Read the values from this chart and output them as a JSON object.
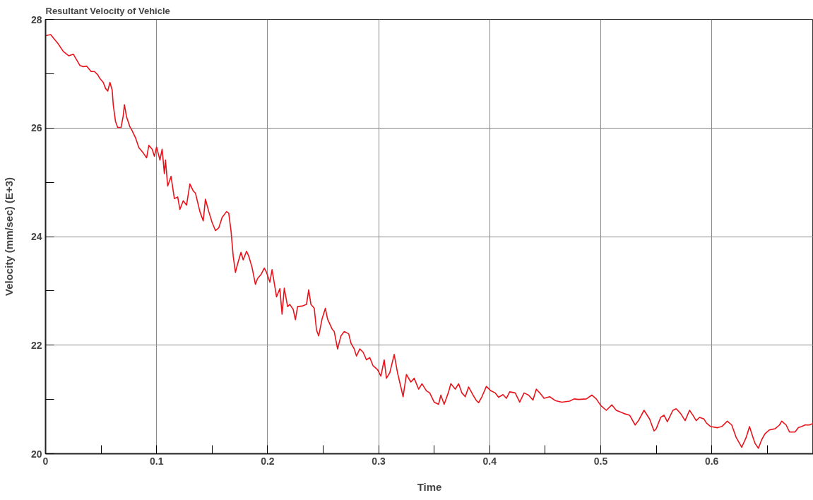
{
  "chart_data": {
    "type": "line",
    "title": "Resultant Velocity of Vehicle",
    "xlabel": "Time",
    "ylabel": "Velocity (mm/sec) (E+3)",
    "x": [
      0,
      0.0046,
      0.0078,
      0.011,
      0.016,
      0.021,
      0.025,
      0.027,
      0.031,
      0.034,
      0.037,
      0.041,
      0.044,
      0.047,
      0.049,
      0.052,
      0.054,
      0.056,
      0.058,
      0.06,
      0.061,
      0.063,
      0.065,
      0.068,
      0.07,
      0.071,
      0.073,
      0.076,
      0.078,
      0.081,
      0.084,
      0.088,
      0.091,
      0.093,
      0.096,
      0.098,
      0.1,
      0.103,
      0.105,
      0.107,
      0.108,
      0.11,
      0.113,
      0.116,
      0.119,
      0.121,
      0.124,
      0.127,
      0.13,
      0.133,
      0.135,
      0.139,
      0.142,
      0.144,
      0.147,
      0.15,
      0.153,
      0.156,
      0.159,
      0.163,
      0.165,
      0.167,
      0.169,
      0.171,
      0.173,
      0.176,
      0.178,
      0.181,
      0.183,
      0.186,
      0.189,
      0.191,
      0.194,
      0.197,
      0.199,
      0.202,
      0.204,
      0.207,
      0.208,
      0.211,
      0.213,
      0.215,
      0.218,
      0.22,
      0.223,
      0.225,
      0.227,
      0.231,
      0.235,
      0.237,
      0.239,
      0.242,
      0.244,
      0.246,
      0.249,
      0.252,
      0.254,
      0.258,
      0.26,
      0.263,
      0.266,
      0.269,
      0.273,
      0.275,
      0.278,
      0.28,
      0.283,
      0.286,
      0.289,
      0.292,
      0.295,
      0.299,
      0.302,
      0.305,
      0.307,
      0.31,
      0.314,
      0.317,
      0.32,
      0.322,
      0.325,
      0.329,
      0.332,
      0.336,
      0.339,
      0.343,
      0.346,
      0.35,
      0.354,
      0.356,
      0.359,
      0.363,
      0.365,
      0.369,
      0.372,
      0.375,
      0.378,
      0.381,
      0.385,
      0.388,
      0.39,
      0.393,
      0.397,
      0.401,
      0.405,
      0.408,
      0.412,
      0.415,
      0.418,
      0.423,
      0.427,
      0.431,
      0.435,
      0.439,
      0.442,
      0.446,
      0.449,
      0.454,
      0.459,
      0.465,
      0.472,
      0.476,
      0.48,
      0.487,
      0.492,
      0.496,
      0.5,
      0.505,
      0.51,
      0.514,
      0.521,
      0.526,
      0.531,
      0.534,
      0.539,
      0.544,
      0.548,
      0.55,
      0.554,
      0.557,
      0.56,
      0.565,
      0.568,
      0.572,
      0.576,
      0.58,
      0.583,
      0.586,
      0.589,
      0.593,
      0.595,
      0.599,
      0.605,
      0.609,
      0.614,
      0.618,
      0.622,
      0.627,
      0.631,
      0.634,
      0.636,
      0.639,
      0.642,
      0.645,
      0.648,
      0.652,
      0.657,
      0.661,
      0.663,
      0.667,
      0.67,
      0.675,
      0.678,
      0.681,
      0.684,
      0.688,
      0.6915
    ],
    "series": [
      {
        "color": "#e8141c",
        "values": [
          27.7,
          27.72,
          27.64,
          27.56,
          27.41,
          27.33,
          27.36,
          27.29,
          27.15,
          27.13,
          27.14,
          27.04,
          27.04,
          26.98,
          26.91,
          26.84,
          26.73,
          26.68,
          26.84,
          26.7,
          26.42,
          26.12,
          26.01,
          26.01,
          26.23,
          26.43,
          26.2,
          26.02,
          25.95,
          25.82,
          25.64,
          25.54,
          25.45,
          25.68,
          25.61,
          25.48,
          25.65,
          25.41,
          25.61,
          25.16,
          25.41,
          24.93,
          25.11,
          24.7,
          24.73,
          24.5,
          24.66,
          24.58,
          24.97,
          24.84,
          24.8,
          24.46,
          24.29,
          24.69,
          24.46,
          24.26,
          24.11,
          24.16,
          24.35,
          24.46,
          24.43,
          24.11,
          23.64,
          23.34,
          23.5,
          23.71,
          23.57,
          23.73,
          23.64,
          23.43,
          23.12,
          23.23,
          23.3,
          23.42,
          23.34,
          23.16,
          23.39,
          23.02,
          22.89,
          23.04,
          22.57,
          23.05,
          22.71,
          22.75,
          22.66,
          22.47,
          22.71,
          22.72,
          22.75,
          23.02,
          22.75,
          22.68,
          22.28,
          22.17,
          22.48,
          22.68,
          22.48,
          22.3,
          22.25,
          21.93,
          22.17,
          22.25,
          22.21,
          22.04,
          21.93,
          21.8,
          21.93,
          21.87,
          21.73,
          21.77,
          21.62,
          21.55,
          21.43,
          21.73,
          21.39,
          21.49,
          21.83,
          21.49,
          21.23,
          21.05,
          21.46,
          21.32,
          21.39,
          21.19,
          21.29,
          21.16,
          21.12,
          20.95,
          20.91,
          21.08,
          20.91,
          21.14,
          21.29,
          21.19,
          21.29,
          21.12,
          21.05,
          21.23,
          21.08,
          20.98,
          20.94,
          21.05,
          21.24,
          21.16,
          21.12,
          21.04,
          21.09,
          21.02,
          21.14,
          21.12,
          20.95,
          21.12,
          21.08,
          20.99,
          21.19,
          21.1,
          21.02,
          21.05,
          20.98,
          20.95,
          20.97,
          21.01,
          21.0,
          21.01,
          21.08,
          21.01,
          20.89,
          20.8,
          20.9,
          20.8,
          20.74,
          20.71,
          20.53,
          20.61,
          20.8,
          20.64,
          20.42,
          20.46,
          20.67,
          20.71,
          20.59,
          20.8,
          20.83,
          20.74,
          20.61,
          20.8,
          20.71,
          20.61,
          20.67,
          20.64,
          20.57,
          20.5,
          20.48,
          20.5,
          20.6,
          20.53,
          20.3,
          20.12,
          20.3,
          20.5,
          20.37,
          20.19,
          20.1,
          20.26,
          20.37,
          20.44,
          20.46,
          20.53,
          20.6,
          20.53,
          20.4,
          20.4,
          20.48,
          20.5,
          20.53,
          20.53,
          20.56
        ]
      }
    ],
    "xlim": [
      0,
      0.6915
    ],
    "ylim": [
      20,
      28
    ],
    "xticks": [
      0,
      {
        "value": 0.05,
        "label": null
      },
      0.1,
      {
        "value": 0.15,
        "label": null
      },
      0.2,
      {
        "value": 0.25,
        "label": null
      },
      0.3,
      {
        "value": 0.35,
        "label": null
      },
      0.4,
      {
        "value": 0.45,
        "label": null
      },
      0.5,
      {
        "value": 0.55,
        "label": null
      },
      0.6,
      {
        "value": 0.65,
        "label": null
      }
    ],
    "yticks": [
      20,
      {
        "value": 21,
        "label": null
      },
      22,
      {
        "value": 23,
        "label": null
      },
      24,
      {
        "value": 25,
        "label": null
      },
      26,
      {
        "value": 27,
        "label": null
      },
      28
    ],
    "grid": true,
    "marker": "none",
    "line_style": "solid"
  }
}
